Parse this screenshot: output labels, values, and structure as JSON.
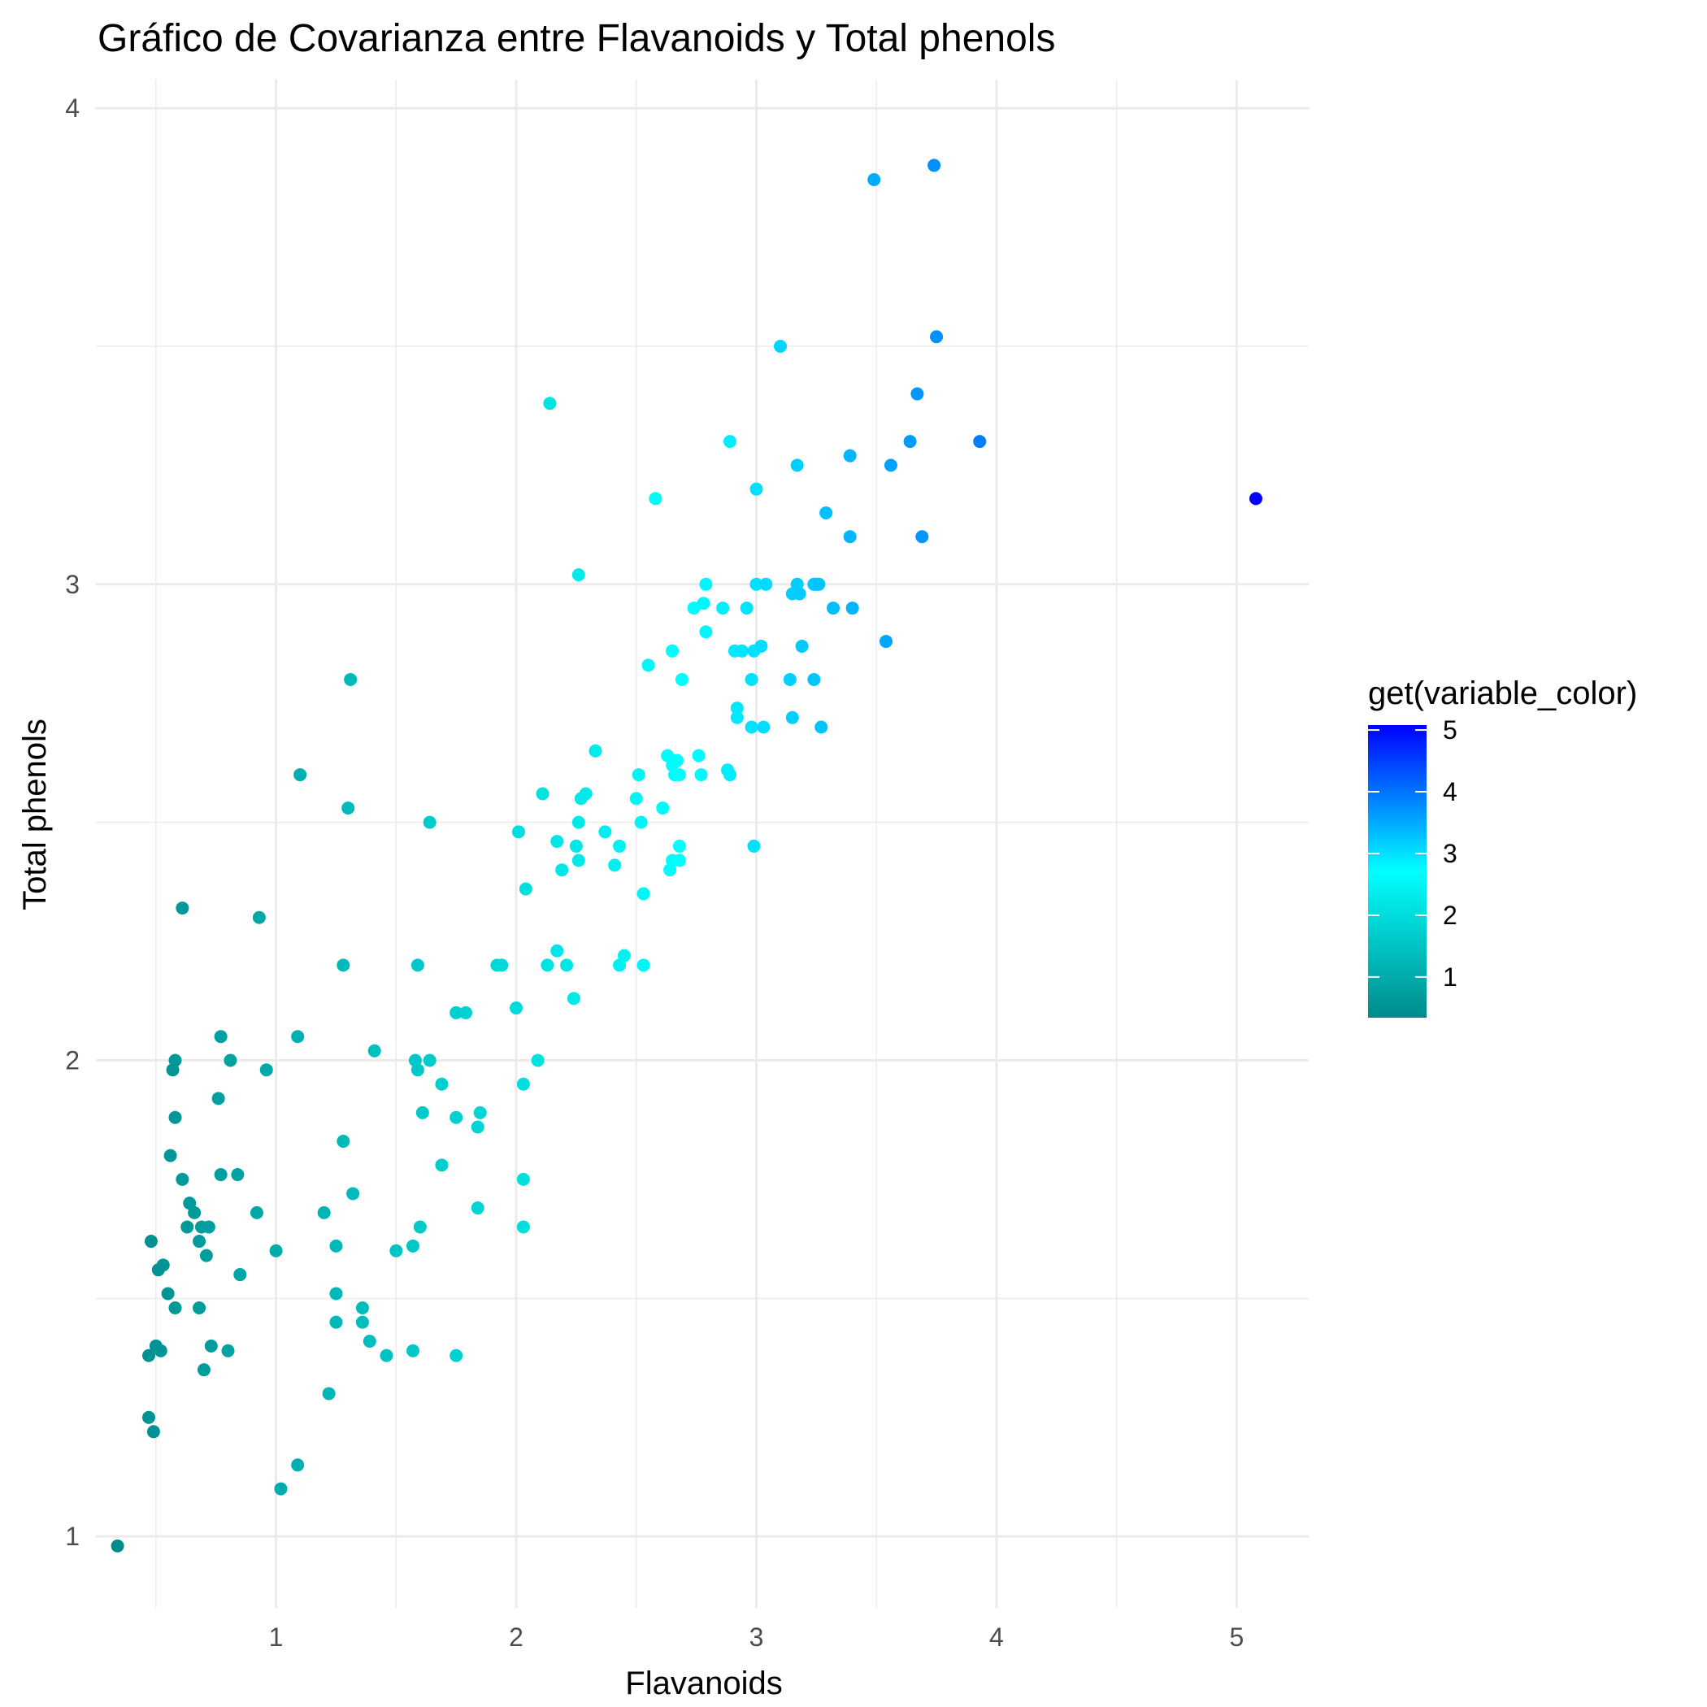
{
  "chart_data": {
    "type": "scatter",
    "title": "Gráfico de Covarianza entre Flavanoids y Total phenols",
    "xlabel": "Flavanoids",
    "ylabel": "Total phenols",
    "xlim": [
      0.25,
      5.3
    ],
    "ylim": [
      0.85,
      4.06
    ],
    "x_ticks": [
      1,
      2,
      3,
      4,
      5
    ],
    "x_tick_labels": [
      "1",
      "2",
      "3",
      "4",
      "5"
    ],
    "y_ticks": [
      1,
      2,
      3,
      4
    ],
    "y_tick_labels": [
      "1",
      "2",
      "3",
      "4"
    ],
    "grid": true,
    "legend": {
      "title": "get(variable_color)",
      "position": "right",
      "min": 0.34,
      "max": 5.08,
      "ticks": [
        1,
        2,
        3,
        4,
        5
      ],
      "tick_labels": [
        "1",
        "2",
        "3",
        "4",
        "5"
      ],
      "color_low": "#008B8B",
      "color_mid": "#00FFFF",
      "color_mid_value": 2.71,
      "color_high": "#0000FF"
    },
    "points": [
      {
        "x": 0.34,
        "y": 0.98
      },
      {
        "x": 0.47,
        "y": 1.38
      },
      {
        "x": 0.47,
        "y": 1.25
      },
      {
        "x": 0.48,
        "y": 1.62
      },
      {
        "x": 0.49,
        "y": 1.22
      },
      {
        "x": 0.5,
        "y": 1.4
      },
      {
        "x": 0.51,
        "y": 1.56
      },
      {
        "x": 0.52,
        "y": 1.39
      },
      {
        "x": 0.53,
        "y": 1.57
      },
      {
        "x": 0.55,
        "y": 1.51
      },
      {
        "x": 0.56,
        "y": 1.8
      },
      {
        "x": 0.57,
        "y": 1.98
      },
      {
        "x": 0.58,
        "y": 2.0
      },
      {
        "x": 0.58,
        "y": 1.48
      },
      {
        "x": 0.58,
        "y": 1.88
      },
      {
        "x": 0.61,
        "y": 1.75
      },
      {
        "x": 0.61,
        "y": 2.32
      },
      {
        "x": 0.63,
        "y": 1.65
      },
      {
        "x": 0.64,
        "y": 1.7
      },
      {
        "x": 0.66,
        "y": 1.68
      },
      {
        "x": 0.68,
        "y": 1.62
      },
      {
        "x": 0.68,
        "y": 1.48
      },
      {
        "x": 0.69,
        "y": 1.65
      },
      {
        "x": 0.7,
        "y": 1.35
      },
      {
        "x": 0.71,
        "y": 1.59
      },
      {
        "x": 0.72,
        "y": 1.65
      },
      {
        "x": 0.73,
        "y": 1.4
      },
      {
        "x": 0.76,
        "y": 1.92
      },
      {
        "x": 0.77,
        "y": 2.05
      },
      {
        "x": 0.77,
        "y": 1.76
      },
      {
        "x": 0.8,
        "y": 1.39
      },
      {
        "x": 0.81,
        "y": 2.0
      },
      {
        "x": 0.84,
        "y": 1.76
      },
      {
        "x": 0.85,
        "y": 1.55
      },
      {
        "x": 0.92,
        "y": 1.68
      },
      {
        "x": 0.93,
        "y": 2.3
      },
      {
        "x": 0.96,
        "y": 1.98
      },
      {
        "x": 1.0,
        "y": 1.6
      },
      {
        "x": 1.02,
        "y": 1.1
      },
      {
        "x": 1.09,
        "y": 1.15
      },
      {
        "x": 1.09,
        "y": 2.05
      },
      {
        "x": 1.1,
        "y": 2.6
      },
      {
        "x": 1.2,
        "y": 1.68
      },
      {
        "x": 1.22,
        "y": 1.3
      },
      {
        "x": 1.25,
        "y": 1.61
      },
      {
        "x": 1.25,
        "y": 1.51
      },
      {
        "x": 1.25,
        "y": 1.45
      },
      {
        "x": 1.28,
        "y": 1.83
      },
      {
        "x": 1.28,
        "y": 2.2
      },
      {
        "x": 1.3,
        "y": 2.53
      },
      {
        "x": 1.31,
        "y": 2.8
      },
      {
        "x": 1.32,
        "y": 1.72
      },
      {
        "x": 1.36,
        "y": 1.48
      },
      {
        "x": 1.36,
        "y": 1.45
      },
      {
        "x": 1.39,
        "y": 1.41
      },
      {
        "x": 1.41,
        "y": 2.02
      },
      {
        "x": 1.46,
        "y": 1.38
      },
      {
        "x": 1.5,
        "y": 1.6
      },
      {
        "x": 1.57,
        "y": 1.61
      },
      {
        "x": 1.57,
        "y": 1.39
      },
      {
        "x": 1.58,
        "y": 2.0
      },
      {
        "x": 1.59,
        "y": 2.2
      },
      {
        "x": 1.59,
        "y": 1.98
      },
      {
        "x": 1.6,
        "y": 1.65
      },
      {
        "x": 1.61,
        "y": 1.89
      },
      {
        "x": 1.64,
        "y": 2.0
      },
      {
        "x": 1.64,
        "y": 2.5
      },
      {
        "x": 1.69,
        "y": 1.78
      },
      {
        "x": 1.69,
        "y": 1.95
      },
      {
        "x": 1.75,
        "y": 1.38
      },
      {
        "x": 1.75,
        "y": 1.88
      },
      {
        "x": 1.75,
        "y": 2.1
      },
      {
        "x": 1.79,
        "y": 2.1
      },
      {
        "x": 1.84,
        "y": 1.69
      },
      {
        "x": 1.84,
        "y": 1.86
      },
      {
        "x": 1.85,
        "y": 1.89
      },
      {
        "x": 1.92,
        "y": 2.2
      },
      {
        "x": 1.94,
        "y": 2.2
      },
      {
        "x": 2.0,
        "y": 2.11
      },
      {
        "x": 2.01,
        "y": 2.48
      },
      {
        "x": 2.03,
        "y": 1.75
      },
      {
        "x": 2.03,
        "y": 1.65
      },
      {
        "x": 2.03,
        "y": 1.95
      },
      {
        "x": 2.04,
        "y": 2.36
      },
      {
        "x": 2.09,
        "y": 2.0
      },
      {
        "x": 2.11,
        "y": 2.56
      },
      {
        "x": 2.14,
        "y": 3.38
      },
      {
        "x": 2.13,
        "y": 2.2
      },
      {
        "x": 2.17,
        "y": 2.23
      },
      {
        "x": 2.17,
        "y": 2.46
      },
      {
        "x": 2.19,
        "y": 2.4
      },
      {
        "x": 2.21,
        "y": 2.2
      },
      {
        "x": 2.24,
        "y": 2.13
      },
      {
        "x": 2.25,
        "y": 2.45
      },
      {
        "x": 2.26,
        "y": 2.42
      },
      {
        "x": 2.26,
        "y": 3.02
      },
      {
        "x": 2.26,
        "y": 2.5
      },
      {
        "x": 2.27,
        "y": 2.55
      },
      {
        "x": 2.29,
        "y": 2.56
      },
      {
        "x": 2.33,
        "y": 2.65
      },
      {
        "x": 2.37,
        "y": 2.48
      },
      {
        "x": 2.41,
        "y": 2.41
      },
      {
        "x": 2.43,
        "y": 2.2
      },
      {
        "x": 2.43,
        "y": 2.45
      },
      {
        "x": 2.45,
        "y": 2.22
      },
      {
        "x": 2.5,
        "y": 2.55
      },
      {
        "x": 2.51,
        "y": 2.6
      },
      {
        "x": 2.52,
        "y": 2.5
      },
      {
        "x": 2.53,
        "y": 2.35
      },
      {
        "x": 2.53,
        "y": 2.2
      },
      {
        "x": 2.55,
        "y": 2.83
      },
      {
        "x": 2.58,
        "y": 3.18
      },
      {
        "x": 2.61,
        "y": 2.53
      },
      {
        "x": 2.63,
        "y": 2.64
      },
      {
        "x": 2.64,
        "y": 2.4
      },
      {
        "x": 2.65,
        "y": 2.42
      },
      {
        "x": 2.65,
        "y": 2.62
      },
      {
        "x": 2.65,
        "y": 2.86
      },
      {
        "x": 2.66,
        "y": 2.6
      },
      {
        "x": 2.67,
        "y": 2.63
      },
      {
        "x": 2.68,
        "y": 2.45
      },
      {
        "x": 2.68,
        "y": 2.42
      },
      {
        "x": 2.68,
        "y": 2.6
      },
      {
        "x": 2.69,
        "y": 2.8
      },
      {
        "x": 2.74,
        "y": 2.95
      },
      {
        "x": 2.76,
        "y": 2.64
      },
      {
        "x": 2.77,
        "y": 2.6
      },
      {
        "x": 2.78,
        "y": 2.96
      },
      {
        "x": 2.79,
        "y": 3.0
      },
      {
        "x": 2.79,
        "y": 2.9
      },
      {
        "x": 2.86,
        "y": 2.95
      },
      {
        "x": 2.88,
        "y": 2.61
      },
      {
        "x": 2.89,
        "y": 3.3
      },
      {
        "x": 2.89,
        "y": 2.6
      },
      {
        "x": 2.91,
        "y": 2.86
      },
      {
        "x": 2.92,
        "y": 2.72
      },
      {
        "x": 2.92,
        "y": 2.74
      },
      {
        "x": 2.94,
        "y": 2.86
      },
      {
        "x": 2.96,
        "y": 2.95
      },
      {
        "x": 2.98,
        "y": 2.7
      },
      {
        "x": 2.98,
        "y": 2.8
      },
      {
        "x": 2.99,
        "y": 2.45
      },
      {
        "x": 2.99,
        "y": 2.86
      },
      {
        "x": 3.0,
        "y": 3.0
      },
      {
        "x": 3.0,
        "y": 3.2
      },
      {
        "x": 3.02,
        "y": 2.87
      },
      {
        "x": 3.03,
        "y": 2.7
      },
      {
        "x": 3.04,
        "y": 3.0
      },
      {
        "x": 3.1,
        "y": 3.5
      },
      {
        "x": 3.14,
        "y": 2.8
      },
      {
        "x": 3.15,
        "y": 2.98
      },
      {
        "x": 3.15,
        "y": 2.72
      },
      {
        "x": 3.17,
        "y": 3.0
      },
      {
        "x": 3.17,
        "y": 3.25
      },
      {
        "x": 3.18,
        "y": 2.98
      },
      {
        "x": 3.19,
        "y": 2.87
      },
      {
        "x": 3.24,
        "y": 3.0
      },
      {
        "x": 3.24,
        "y": 2.8
      },
      {
        "x": 3.25,
        "y": 3.0
      },
      {
        "x": 3.26,
        "y": 3.0
      },
      {
        "x": 3.27,
        "y": 2.7
      },
      {
        "x": 3.29,
        "y": 3.15
      },
      {
        "x": 3.32,
        "y": 2.95
      },
      {
        "x": 3.39,
        "y": 3.1
      },
      {
        "x": 3.39,
        "y": 3.27
      },
      {
        "x": 3.4,
        "y": 2.95
      },
      {
        "x": 3.49,
        "y": 3.85
      },
      {
        "x": 3.54,
        "y": 2.88
      },
      {
        "x": 3.56,
        "y": 3.25
      },
      {
        "x": 3.64,
        "y": 3.3
      },
      {
        "x": 3.67,
        "y": 3.4
      },
      {
        "x": 3.69,
        "y": 3.1
      },
      {
        "x": 3.74,
        "y": 3.88
      },
      {
        "x": 3.75,
        "y": 3.52
      },
      {
        "x": 3.93,
        "y": 3.3
      },
      {
        "x": 5.08,
        "y": 3.18
      }
    ]
  }
}
